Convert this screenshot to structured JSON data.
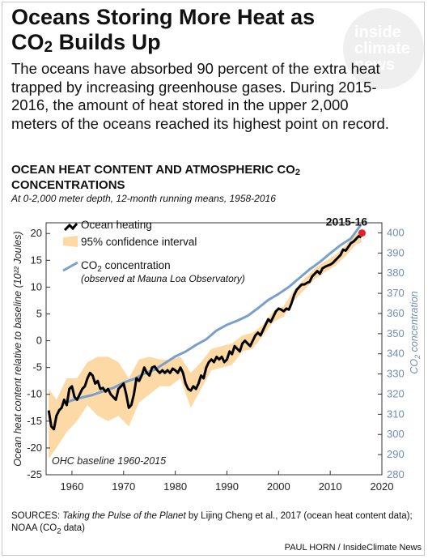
{
  "headline": {
    "part1": "Oceans Storing More Heat as",
    "part2a": "CO",
    "part2b": "2",
    "part2c": " Builds Up"
  },
  "lede": "The oceans have absorbed 90 percent of the extra heat trapped by increasing greenhouse gases. During 2015-2016, the amount of heat stored in the upper 2,000 meters of the oceans reached its highest point on record.",
  "logo": {
    "line1": "inside",
    "line2": "climate",
    "line3": "news"
  },
  "chart_title": {
    "part1": "OCEAN HEAT CONTENT AND ATMOSPHERIC CO",
    "part2": "2",
    "part3": "CONCENTRATIONS"
  },
  "chart_subtitle": "At 0-2,000 meter depth, 12-month running means, 1958-2016",
  "sources": {
    "prefix": "SOURCES: ",
    "title": "Taking the Pulse of the Planet",
    "rest": " by Lijing Cheng et al., 2017 (ocean heat content data); NOAA (CO",
    "sub": "2",
    "end": " data)"
  },
  "credit": "PAUL HORN / InsideClimate News",
  "colors": {
    "ocean": "#000000",
    "ci": "#fdd9a5",
    "co2": "#7b9fcb",
    "peak": "#e8202a",
    "axis_right": "#6f8db5"
  },
  "chart_data": {
    "type": "line",
    "xlim": [
      1955,
      2020
    ],
    "x_ticks": [
      1960,
      1970,
      1980,
      1990,
      2000,
      2010,
      2020
    ],
    "ylabel_left": "Ocean heat content relative to baseline (10²² Joules)",
    "ylim_left": [
      -25,
      22
    ],
    "y_ticks_left": [
      20,
      15,
      10,
      5,
      0,
      -5,
      -10,
      -15,
      -20,
      -25
    ],
    "ylabel_right": "CO2 concentration",
    "ylim_right": [
      280,
      405
    ],
    "y_ticks_right": [
      400,
      390,
      380,
      370,
      360,
      350,
      340,
      330,
      320,
      310,
      300,
      290,
      280
    ],
    "annotation_peak": "2015-16",
    "annotation_baseline": "OHC baseline 1960-2015",
    "legend": {
      "ocean": "Ocean heating",
      "ci": "95% confidence interval",
      "co2_a": "CO",
      "co2_b": "2",
      "co2_c": " concentration",
      "co2_note": "(observed at Mauna Loa Observatory)"
    },
    "series": [
      {
        "name": "Ocean heating",
        "axis": "left",
        "points": [
          [
            1955.5,
            -13
          ],
          [
            1956,
            -16
          ],
          [
            1956.5,
            -16.5
          ],
          [
            1957,
            -14
          ],
          [
            1957.5,
            -13
          ],
          [
            1958,
            -12.5
          ],
          [
            1958.5,
            -11
          ],
          [
            1959,
            -12
          ],
          [
            1959.5,
            -9
          ],
          [
            1960,
            -8.5
          ],
          [
            1960.5,
            -10.5
          ],
          [
            1961,
            -11
          ],
          [
            1961.5,
            -10
          ],
          [
            1962,
            -9
          ],
          [
            1962.5,
            -8.5
          ],
          [
            1963,
            -7
          ],
          [
            1963.5,
            -6
          ],
          [
            1964,
            -6.5
          ],
          [
            1964.5,
            -8
          ],
          [
            1965,
            -7.5
          ],
          [
            1965.5,
            -9
          ],
          [
            1966,
            -8.8
          ],
          [
            1966.5,
            -9.5
          ],
          [
            1967,
            -9
          ],
          [
            1967.5,
            -10
          ],
          [
            1968,
            -10.5
          ],
          [
            1968.5,
            -11
          ],
          [
            1969,
            -9
          ],
          [
            1969.5,
            -8.5
          ],
          [
            1970,
            -8
          ],
          [
            1970.5,
            -10
          ],
          [
            1971,
            -12.5
          ],
          [
            1971.5,
            -12
          ],
          [
            1972,
            -10
          ],
          [
            1972.5,
            -7
          ],
          [
            1973,
            -7.5
          ],
          [
            1973.5,
            -6.5
          ],
          [
            1974,
            -5
          ],
          [
            1974.5,
            -6
          ],
          [
            1975,
            -6.5
          ],
          [
            1975.5,
            -5
          ],
          [
            1976,
            -4.8
          ],
          [
            1976.5,
            -5.5
          ],
          [
            1977,
            -6
          ],
          [
            1977.5,
            -5.5
          ],
          [
            1978,
            -6
          ],
          [
            1978.5,
            -5.5
          ],
          [
            1979,
            -6
          ],
          [
            1979.5,
            -5.2
          ],
          [
            1980,
            -5.5
          ],
          [
            1980.5,
            -6
          ],
          [
            1981,
            -5
          ],
          [
            1981.5,
            -6
          ],
          [
            1982,
            -8
          ],
          [
            1982.5,
            -9
          ],
          [
            1983,
            -9.3
          ],
          [
            1983.5,
            -8.5
          ],
          [
            1984,
            -9
          ],
          [
            1984.5,
            -8
          ],
          [
            1985,
            -6.5
          ],
          [
            1985.5,
            -7
          ],
          [
            1986,
            -5
          ],
          [
            1986.5,
            -4
          ],
          [
            1987,
            -3.5
          ],
          [
            1987.5,
            -4
          ],
          [
            1988,
            -3
          ],
          [
            1988.5,
            -3.5
          ],
          [
            1989,
            -3
          ],
          [
            1989.5,
            -4
          ],
          [
            1990,
            -3.5
          ],
          [
            1990.5,
            -2
          ],
          [
            1991,
            -2.5
          ],
          [
            1991.5,
            -1
          ],
          [
            1992,
            -1.5
          ],
          [
            1992.5,
            -2
          ],
          [
            1993,
            -0.5
          ],
          [
            1993.5,
            0
          ],
          [
            1994,
            -0.5
          ],
          [
            1994.5,
            -1
          ],
          [
            1995,
            0
          ],
          [
            1995.5,
            1
          ],
          [
            1996,
            1.5
          ],
          [
            1996.5,
            1
          ],
          [
            1997,
            2
          ],
          [
            1997.5,
            3
          ],
          [
            1998,
            4
          ],
          [
            1998.5,
            3.5
          ],
          [
            1999,
            4.5
          ],
          [
            1999.5,
            5.5
          ],
          [
            2000,
            6
          ],
          [
            2000.5,
            5.8
          ],
          [
            2001,
            5.5
          ],
          [
            2001.5,
            6
          ],
          [
            2002,
            5.8
          ],
          [
            2002.5,
            7
          ],
          [
            2003,
            8.5
          ],
          [
            2003.5,
            9.5
          ],
          [
            2004,
            10
          ],
          [
            2004.5,
            10.5
          ],
          [
            2005,
            10.5
          ],
          [
            2005.5,
            10.8
          ],
          [
            2006,
            11
          ],
          [
            2006.5,
            12
          ],
          [
            2007,
            12.5
          ],
          [
            2007.5,
            13
          ],
          [
            2008,
            12.5
          ],
          [
            2008.5,
            13.5
          ],
          [
            2009,
            13.8
          ],
          [
            2009.5,
            14
          ],
          [
            2010,
            14.2
          ],
          [
            2010.5,
            14.5
          ],
          [
            2011,
            15
          ],
          [
            2011.5,
            15.5
          ],
          [
            2012,
            16
          ],
          [
            2012.5,
            17
          ],
          [
            2013,
            16.8
          ],
          [
            2013.5,
            17.5
          ],
          [
            2014,
            18.2
          ],
          [
            2014.5,
            18.5
          ],
          [
            2015,
            19
          ],
          [
            2015.5,
            19.5
          ],
          [
            2016,
            19.3
          ]
        ]
      },
      {
        "name": "CO2 concentration",
        "axis": "right",
        "points": [
          [
            1958.5,
            315.5
          ],
          [
            1960,
            316.9
          ],
          [
            1962,
            318.4
          ],
          [
            1964,
            319.6
          ],
          [
            1966,
            321.4
          ],
          [
            1968,
            323.1
          ],
          [
            1970,
            325.7
          ],
          [
            1972,
            327.5
          ],
          [
            1974,
            330.2
          ],
          [
            1976,
            332.1
          ],
          [
            1978,
            335.4
          ],
          [
            1980,
            338.7
          ],
          [
            1982,
            341.1
          ],
          [
            1984,
            344.4
          ],
          [
            1986,
            347.2
          ],
          [
            1988,
            351.6
          ],
          [
            1990,
            354.4
          ],
          [
            1992,
            356.4
          ],
          [
            1994,
            358.8
          ],
          [
            1996,
            362.6
          ],
          [
            1998,
            366.7
          ],
          [
            2000,
            369.7
          ],
          [
            2002,
            373.2
          ],
          [
            2004,
            377.5
          ],
          [
            2006,
            381.9
          ],
          [
            2008,
            385.6
          ],
          [
            2010,
            389.9
          ],
          [
            2012,
            393.9
          ],
          [
            2014,
            397.2
          ],
          [
            2016,
            404.2
          ]
        ]
      },
      {
        "name": "95% confidence interval",
        "axis": "left",
        "upper": [
          [
            1955.5,
            -9
          ],
          [
            1957,
            -11
          ],
          [
            1959,
            -7
          ],
          [
            1961,
            -7
          ],
          [
            1963,
            -4
          ],
          [
            1965,
            -3
          ],
          [
            1967,
            -3
          ],
          [
            1969,
            -4
          ],
          [
            1971,
            -7
          ],
          [
            1973,
            -3.5
          ],
          [
            1975,
            -3
          ],
          [
            1977,
            -3.5
          ],
          [
            1979,
            -3.5
          ],
          [
            1981,
            -3
          ],
          [
            1983,
            -6
          ],
          [
            1985,
            -4
          ],
          [
            1987,
            -1.5
          ],
          [
            1989,
            -1
          ],
          [
            1991,
            -0.5
          ],
          [
            1993,
            1
          ],
          [
            1995,
            1.5
          ],
          [
            1997,
            3
          ],
          [
            1999,
            5.5
          ],
          [
            2001,
            6.5
          ],
          [
            2003,
            9.5
          ],
          [
            2005,
            11.5
          ],
          [
            2007,
            13.5
          ],
          [
            2009,
            14.8
          ],
          [
            2011,
            16
          ],
          [
            2013,
            17.8
          ],
          [
            2015,
            20
          ],
          [
            2016,
            20.2
          ]
        ],
        "lower": [
          [
            2016,
            18.3
          ],
          [
            2015,
            18
          ],
          [
            2013,
            15.8
          ],
          [
            2011,
            14
          ],
          [
            2009,
            12.8
          ],
          [
            2007,
            11.5
          ],
          [
            2005,
            9.5
          ],
          [
            2003,
            7.5
          ],
          [
            2001,
            4.5
          ],
          [
            1999,
            3.5
          ],
          [
            1997,
            1
          ],
          [
            1995,
            -1.5
          ],
          [
            1993,
            -2
          ],
          [
            1991,
            -4.5
          ],
          [
            1989,
            -5
          ],
          [
            1987,
            -5.5
          ],
          [
            1985,
            -9
          ],
          [
            1983,
            -12.5
          ],
          [
            1981,
            -7
          ],
          [
            1979,
            -8.5
          ],
          [
            1977,
            -8.5
          ],
          [
            1975,
            -10
          ],
          [
            1973,
            -11.5
          ],
          [
            1971,
            -16
          ],
          [
            1969,
            -14
          ],
          [
            1967,
            -15
          ],
          [
            1965,
            -14
          ],
          [
            1963,
            -12
          ],
          [
            1961,
            -15
          ],
          [
            1959,
            -17
          ],
          [
            1957,
            -20
          ],
          [
            1955.5,
            -22
          ]
        ]
      }
    ]
  }
}
